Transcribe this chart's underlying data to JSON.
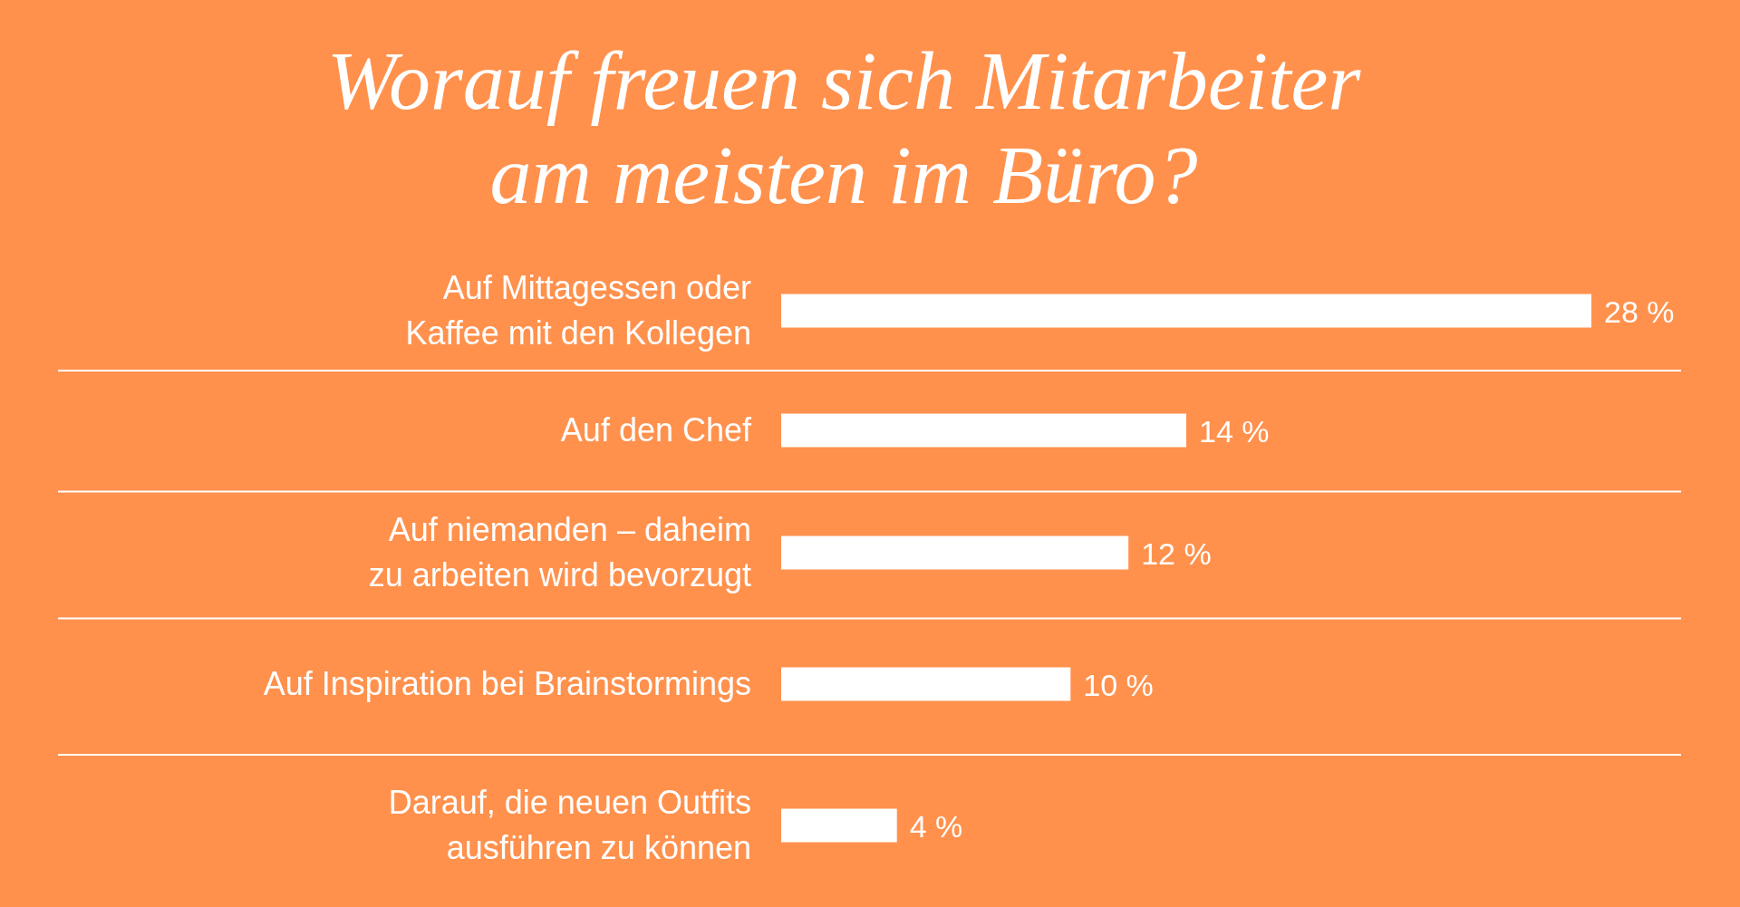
{
  "chart_data": {
    "type": "bar",
    "orientation": "horizontal",
    "title": "Worauf freuen sich Mitarbeiter\nam meisten im Büro?",
    "categories": [
      "Auf Mittagessen oder\nKaffee mit den Kollegen",
      "Auf den Chef",
      "Auf niemanden – daheim\nzu arbeiten wird bevorzugt",
      "Auf Inspiration bei Brainstormings",
      "Darauf, die neuen Outfits\nausführen zu können"
    ],
    "values": [
      28,
      14,
      12,
      10,
      4
    ],
    "value_labels": [
      "28 %",
      "14 %",
      "12 %",
      "10 %",
      "4 %"
    ],
    "color": "#ffffff",
    "grid": "y",
    "tick_labels": "y"
  }
}
